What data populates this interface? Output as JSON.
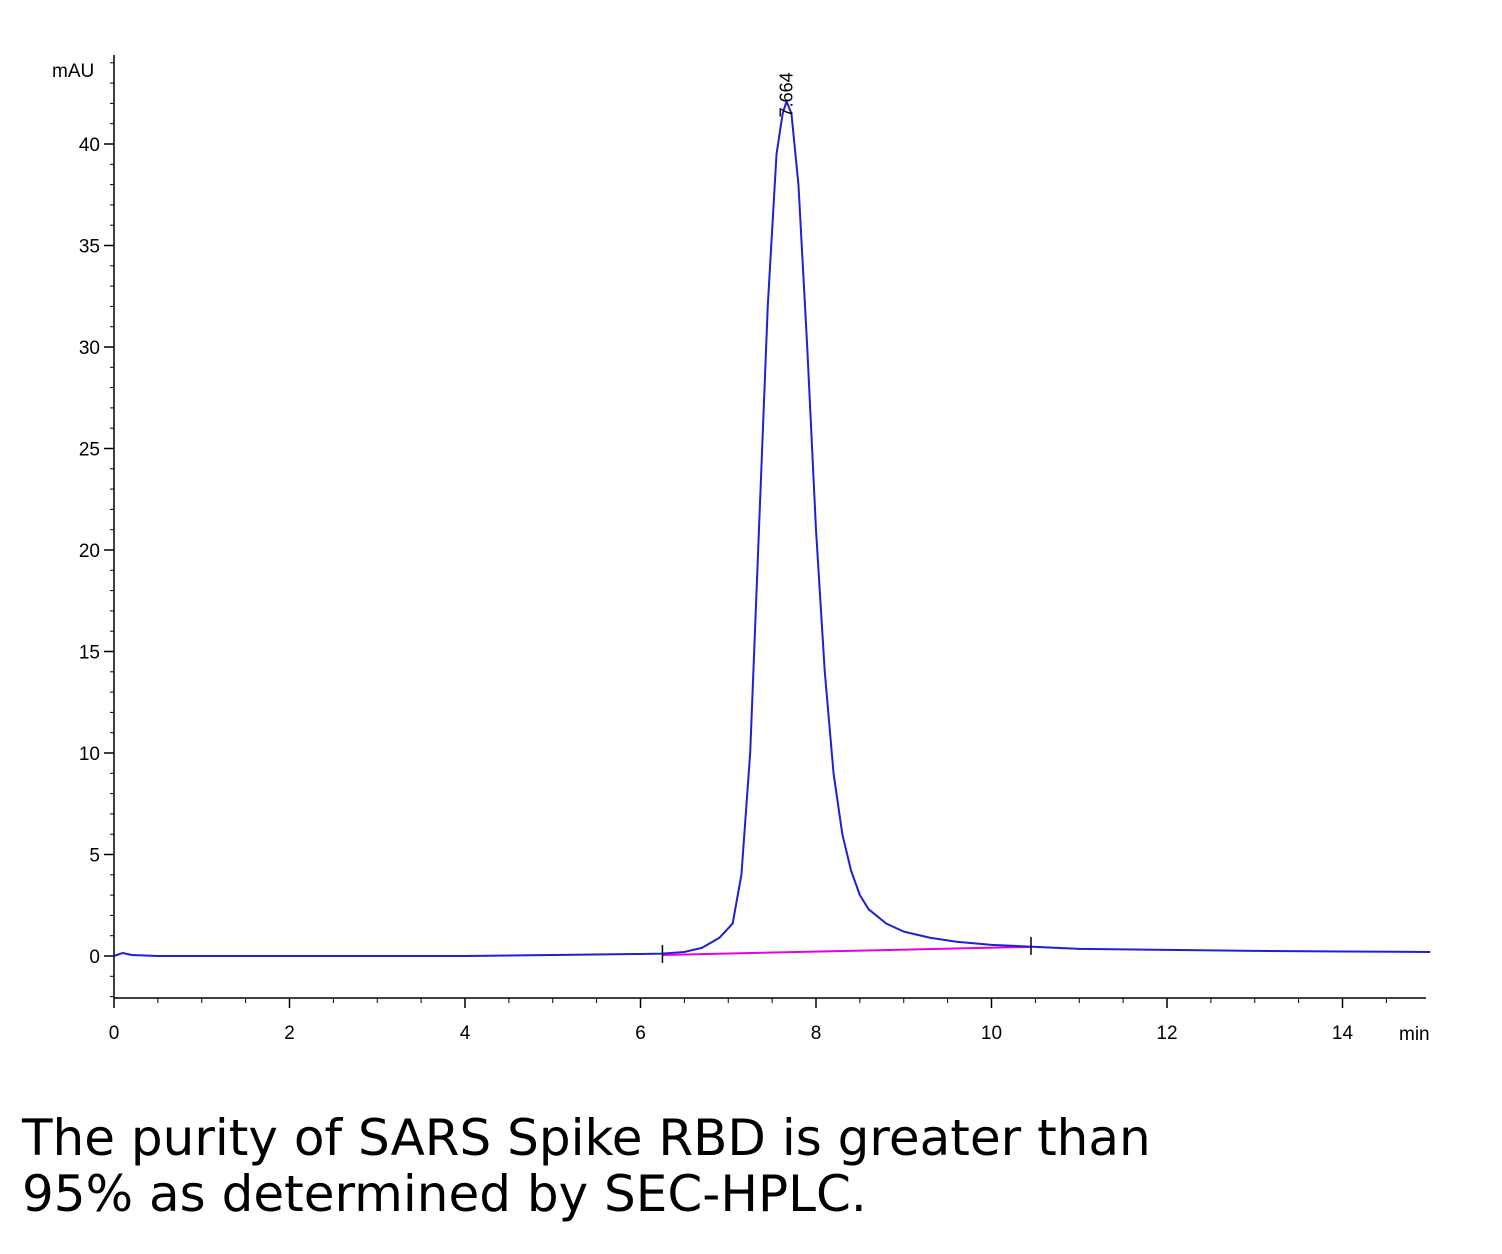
{
  "chart_data": {
    "type": "line",
    "x_unit": "min",
    "y_unit": "mAU",
    "xlim": [
      0,
      15
    ],
    "ylim": [
      -2,
      45
    ],
    "x_ticks": [
      0,
      2,
      4,
      6,
      8,
      10,
      12,
      14
    ],
    "y_ticks": [
      0,
      5,
      10,
      15,
      20,
      25,
      30,
      35,
      40
    ],
    "grid": false,
    "colors": {
      "signal": "#1f1fd6",
      "baseline": "#e600e6",
      "axis": "#000000"
    },
    "series": [
      {
        "role": "signal",
        "x": [
          0.0,
          0.1,
          0.2,
          0.5,
          1.0,
          2.0,
          3.0,
          4.0,
          5.0,
          6.0,
          6.25,
          6.5,
          6.7,
          6.9,
          7.05,
          7.15,
          7.25,
          7.35,
          7.45,
          7.55,
          7.62,
          7.664,
          7.72,
          7.8,
          7.9,
          8.0,
          8.1,
          8.2,
          8.3,
          8.4,
          8.5,
          8.6,
          8.8,
          9.0,
          9.3,
          9.6,
          10.0,
          10.5,
          11.0,
          12.0,
          13.0,
          14.0,
          15.0
        ],
        "y": [
          0.0,
          0.15,
          0.05,
          0.0,
          0.0,
          0.0,
          0.0,
          0.0,
          0.05,
          0.1,
          0.12,
          0.2,
          0.4,
          0.9,
          1.6,
          4.0,
          10.0,
          21.0,
          32.0,
          39.5,
          41.5,
          42.1,
          41.5,
          38.0,
          30.0,
          21.0,
          14.0,
          9.0,
          6.0,
          4.2,
          3.0,
          2.3,
          1.6,
          1.2,
          0.9,
          0.7,
          0.55,
          0.45,
          0.35,
          0.3,
          0.25,
          0.22,
          0.2
        ]
      },
      {
        "role": "baseline",
        "x": [
          6.25,
          10.45
        ],
        "y": [
          0.05,
          0.45
        ]
      }
    ],
    "integration_markers": [
      6.25,
      10.45
    ],
    "annotations": [
      {
        "text": "7.664",
        "x": 7.664,
        "y": 42.1
      }
    ]
  },
  "caption": {
    "line1": "The purity of SARS Spike RBD is greater than",
    "line2": "95% as determined by SEC-HPLC."
  }
}
